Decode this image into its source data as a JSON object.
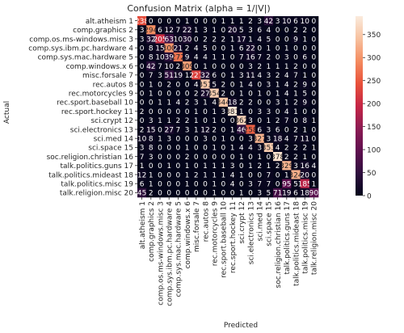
{
  "chart_data": {
    "type": "heatmap",
    "title": "Confusion Matrix (alpha = 1/|V|)",
    "xlabel": "Predicted",
    "ylabel": "Actual",
    "labels": [
      "alt.atheism 1",
      "comp.graphics 2",
      "comp.os.ms-windows.misc 3",
      "comp.sys.ibm.pc.hardware 4",
      "comp.sys.mac.hardware 5",
      "comp.windows.x 6",
      "misc.forsale 7",
      "rec.autos 8",
      "rec.motorcycles 9",
      "rec.sport.baseball 10",
      "rec.sport.hockey 11",
      "sci.crypt 12",
      "sci.electronics 13",
      "sci.med 14",
      "sci.space 15",
      "soc.religion.christian 16",
      "talk.politics.guns 17",
      "talk.politics.mideast 18",
      "talk.politics.misc 19",
      "talk.religion.misc 20"
    ],
    "matrix": [
      [
        238,
        0,
        0,
        0,
        0,
        1,
        0,
        0,
        0,
        1,
        1,
        1,
        2,
        3,
        42,
        3,
        10,
        6,
        10,
        0
      ],
      [
        3,
        294,
        6,
        12,
        7,
        22,
        1,
        3,
        1,
        0,
        20,
        5,
        3,
        6,
        4,
        0,
        0,
        2,
        2,
        0
      ],
      [
        3,
        32,
        205,
        63,
        10,
        30,
        0,
        2,
        2,
        2,
        1,
        17,
        1,
        4,
        5,
        0,
        0,
        9,
        1,
        0
      ],
      [
        0,
        8,
        15,
        300,
        21,
        2,
        4,
        5,
        0,
        0,
        1,
        6,
        22,
        0,
        1,
        0,
        1,
        0,
        0,
        0
      ],
      [
        0,
        8,
        10,
        39,
        272,
        9,
        4,
        4,
        1,
        1,
        0,
        7,
        16,
        7,
        2,
        0,
        3,
        0,
        6,
        0
      ],
      [
        0,
        42,
        7,
        10,
        2,
        309,
        0,
        1,
        0,
        0,
        0,
        0,
        3,
        2,
        1,
        1,
        1,
        2,
        0,
        0
      ],
      [
        0,
        7,
        3,
        51,
        19,
        1,
        227,
        32,
        6,
        0,
        1,
        3,
        11,
        4,
        3,
        2,
        4,
        7,
        1,
        0
      ],
      [
        0,
        1,
        0,
        2,
        0,
        0,
        4,
        351,
        5,
        2,
        0,
        1,
        4,
        0,
        3,
        1,
        4,
        2,
        9,
        0
      ],
      [
        0,
        1,
        0,
        0,
        0,
        0,
        2,
        27,
        354,
        2,
        0,
        1,
        0,
        1,
        0,
        1,
        4,
        1,
        5,
        0
      ],
      [
        0,
        0,
        1,
        1,
        4,
        2,
        3,
        1,
        4,
        344,
        18,
        2,
        2,
        0,
        0,
        3,
        1,
        2,
        9,
        0
      ],
      [
        2,
        0,
        0,
        0,
        0,
        0,
        1,
        0,
        1,
        3,
        381,
        1,
        0,
        3,
        3,
        0,
        4,
        1,
        0,
        0
      ],
      [
        0,
        3,
        1,
        1,
        2,
        2,
        1,
        0,
        1,
        0,
        0,
        362,
        3,
        0,
        1,
        2,
        7,
        0,
        8,
        1
      ],
      [
        2,
        15,
        0,
        27,
        7,
        3,
        1,
        12,
        2,
        0,
        1,
        46,
        258,
        6,
        3,
        6,
        0,
        2,
        1,
        0
      ],
      [
        10,
        8,
        1,
        3,
        0,
        0,
        0,
        3,
        0,
        1,
        0,
        0,
        3,
        327,
        3,
        18,
        4,
        7,
        11,
        0
      ],
      [
        3,
        8,
        0,
        0,
        0,
        1,
        0,
        0,
        1,
        0,
        1,
        4,
        4,
        3,
        353,
        4,
        2,
        2,
        2,
        1
      ],
      [
        7,
        3,
        0,
        0,
        0,
        2,
        0,
        0,
        0,
        0,
        0,
        1,
        0,
        1,
        0,
        378,
        2,
        2,
        1,
        0
      ],
      [
        1,
        0,
        0,
        1,
        0,
        1,
        0,
        1,
        1,
        1,
        3,
        0,
        1,
        2,
        1,
        2,
        329,
        3,
        16,
        4
      ],
      [
        12,
        1,
        0,
        0,
        0,
        1,
        2,
        1,
        1,
        1,
        4,
        1,
        0,
        0,
        7,
        0,
        1,
        324,
        20,
        0
      ],
      [
        6,
        1,
        0,
        0,
        0,
        1,
        0,
        0,
        1,
        0,
        4,
        0,
        3,
        7,
        7,
        0,
        95,
        5,
        185,
        1
      ],
      [
        45,
        2,
        0,
        0,
        0,
        0,
        0,
        0,
        1,
        0,
        0,
        1,
        0,
        3,
        5,
        71,
        19,
        6,
        18,
        90
      ]
    ],
    "colorbar_ticks": [
      0,
      50,
      100,
      150,
      200,
      250,
      300,
      350
    ],
    "value_range": [
      0,
      390
    ],
    "colormap": "rocket",
    "colormap_stops": [
      "#03051a",
      "#2f0f3e",
      "#5f0f4f",
      "#8c1b53",
      "#c52545",
      "#e8513a",
      "#f48c60",
      "#f7c19f",
      "#faebdd"
    ],
    "annotation_colors": {
      "dark": "#262626",
      "light": "#ffffff"
    }
  }
}
